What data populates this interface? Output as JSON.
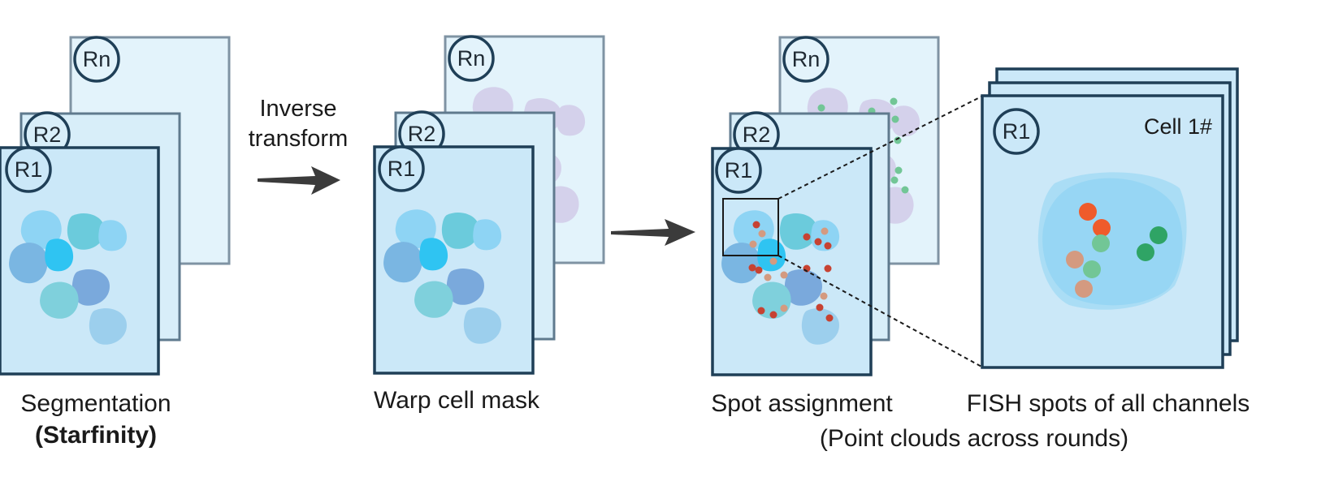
{
  "rounds": {
    "first": "R1",
    "second": "R2",
    "last": "Rn"
  },
  "step1": {
    "caption_line1": "Segmentation",
    "caption_line2": "(Starfinity)"
  },
  "transform": {
    "line1": "Inverse",
    "line2": "transform"
  },
  "step2": {
    "caption": "Warp cell mask"
  },
  "step3": {
    "caption": "Spot assignment"
  },
  "zoom": {
    "cell_label": "Cell 1#",
    "caption": "FISH spots of all channels"
  },
  "footer": {
    "caption": "(Point clouds across rounds)"
  },
  "colors": {
    "panel_front": "#cbe8f8",
    "panel_back": "#e3f3fb",
    "panel_border": "#1f3f57",
    "panel_border_back": "#7f93a3",
    "cell_light": "#8ed4f4",
    "cell_teal": "#6bcbdc",
    "cell_bright": "#2fc4f2",
    "cell_blue": "#7ab6e2",
    "cell_indigo": "#8ea9dc",
    "spot_red": "#c74232",
    "spot_orange": "#ef5b2b",
    "spot_tan": "#d49a80",
    "spot_green": "#2fa465",
    "spot_lightgreen": "#72c696",
    "arrow": "#3b3b3b"
  }
}
